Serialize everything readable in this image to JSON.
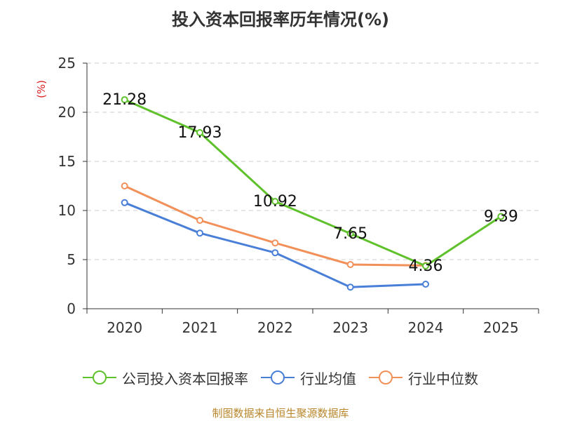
{
  "chart_data": {
    "type": "line",
    "title": "投入资本回报率历年情况(%)",
    "ylabel": "(%)",
    "xlabel": "",
    "categories": [
      "2020",
      "2021",
      "2022",
      "2023",
      "2024",
      "2025"
    ],
    "ylim": [
      0,
      25
    ],
    "yticks": [
      0,
      5,
      10,
      15,
      20,
      25
    ],
    "grid": "horizontal dashed",
    "legend_position": "bottom",
    "series": [
      {
        "name": "公司投入资本回报率",
        "color": "#5fc12b",
        "values": [
          21.28,
          17.93,
          10.92,
          7.65,
          4.36,
          9.39
        ],
        "labels": [
          "21.28",
          "17.93",
          "10.92",
          "7.65",
          "4.36",
          "9.39"
        ]
      },
      {
        "name": "行业均值",
        "color": "#4a7fd8",
        "values": [
          10.8,
          7.7,
          5.7,
          2.2,
          2.5,
          null
        ]
      },
      {
        "name": "行业中位数",
        "color": "#f2905a",
        "values": [
          12.5,
          9.0,
          6.7,
          4.5,
          4.4,
          null
        ]
      }
    ]
  },
  "footer": "制图数据来自恒生聚源数据库"
}
